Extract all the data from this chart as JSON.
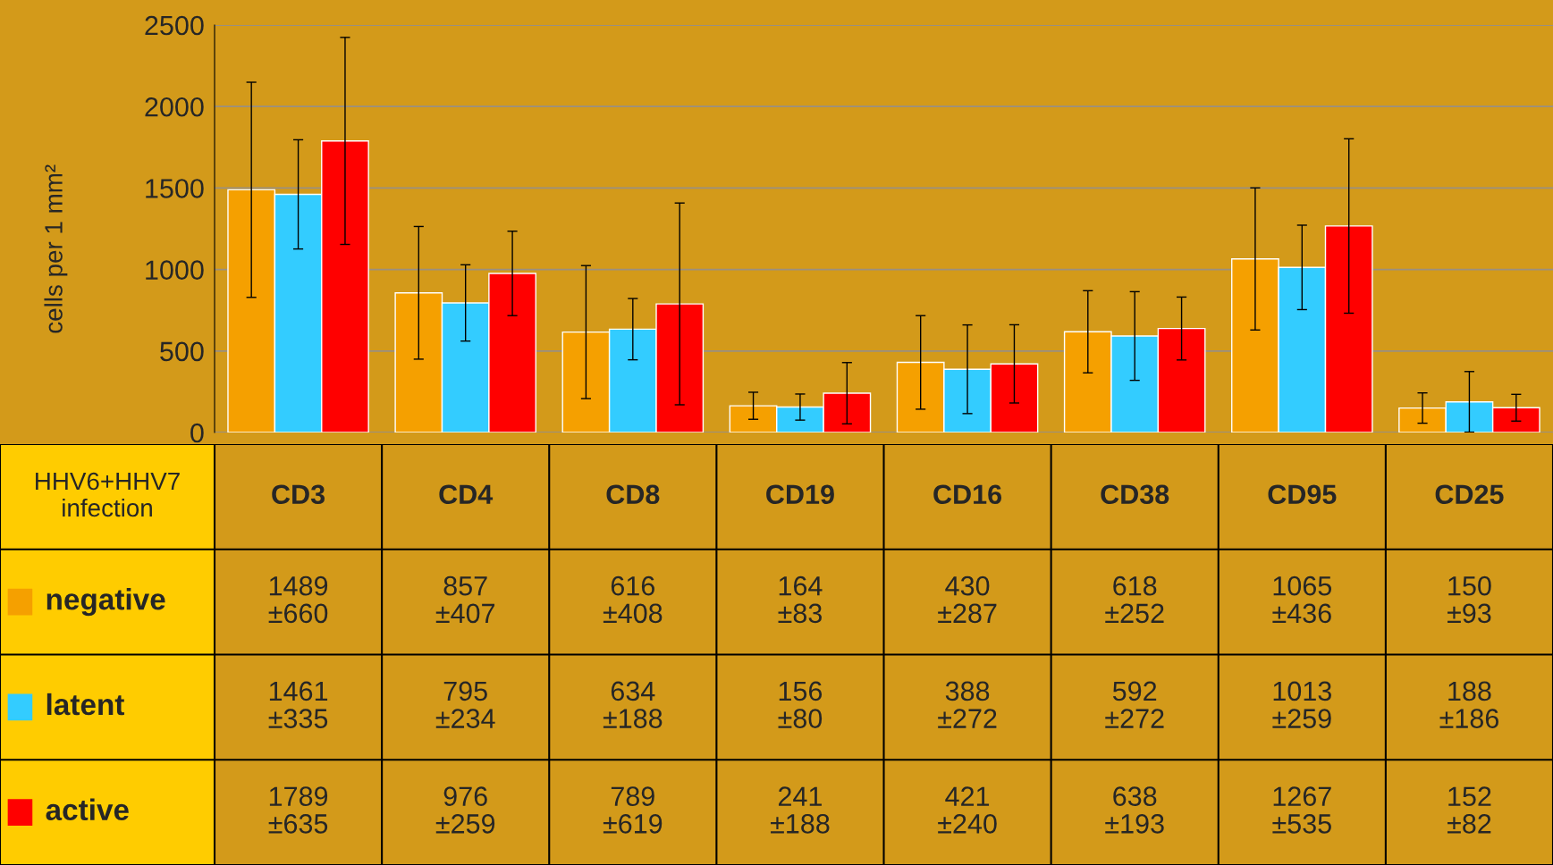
{
  "chart_data": {
    "type": "bar",
    "categories": [
      "CD3",
      "CD4",
      "CD8",
      "CD19",
      "CD16",
      "CD38",
      "CD95",
      "CD25"
    ],
    "series": [
      {
        "name": "negative",
        "color": "#f5a000",
        "values": [
          1489,
          857,
          616,
          164,
          430,
          618,
          1065,
          150
        ],
        "errors": [
          660,
          407,
          408,
          83,
          287,
          252,
          436,
          93
        ],
        "value_labels": [
          "1489\n±660",
          "857\n±407",
          "616\n±408",
          "164\n±83",
          "430\n±287",
          "618\n±252",
          "1065\n±436",
          "150\n±93"
        ]
      },
      {
        "name": "latent",
        "color": "#33ccff",
        "values": [
          1461,
          795,
          634,
          156,
          388,
          592,
          1013,
          188
        ],
        "errors": [
          335,
          234,
          188,
          80,
          272,
          272,
          259,
          186
        ],
        "value_labels": [
          "1461\n±335",
          "795\n±234",
          "634\n±188",
          "156\n±80",
          "388\n±272",
          "592\n±272",
          "1013\n±259",
          "188\n±186"
        ]
      },
      {
        "name": "active",
        "color": "#ff0000",
        "values": [
          1789,
          976,
          789,
          241,
          421,
          638,
          1267,
          152
        ],
        "errors": [
          635,
          259,
          619,
          188,
          240,
          193,
          535,
          82
        ],
        "value_labels": [
          "1789\n±635",
          "976\n±259",
          "789\n±619",
          "241\n±188",
          "421\n±240",
          "638\n±193",
          "1267\n±535",
          "152\n±82"
        ]
      }
    ],
    "ylabel": "cells per 1 mm²",
    "legend_title": "HHV6+HHV7 infection",
    "ylim": [
      0,
      2500
    ],
    "yticks": [
      0,
      500,
      1000,
      1500,
      2000,
      2500
    ],
    "grid": "y",
    "legend": "bottom"
  }
}
